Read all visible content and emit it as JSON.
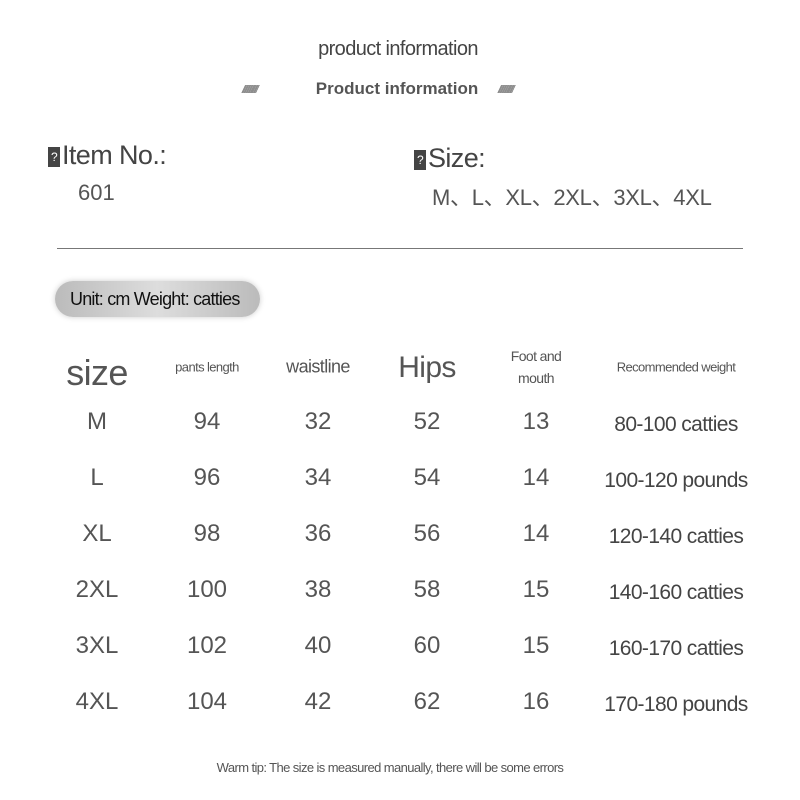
{
  "header": {
    "title": "product information",
    "subtitle": "Product information",
    "hatch": "//////////////"
  },
  "item": {
    "icon": "?",
    "label": "Item No.:",
    "value": "601"
  },
  "size": {
    "icon": "?",
    "label": "Size:",
    "value": "M、L、XL、2XL、3XL、4XL"
  },
  "unit_badge": "Unit: cm Weight: catties",
  "table": {
    "headers": [
      "size",
      "pants length",
      "waistline",
      "Hips",
      "Foot and mouth",
      "Recommended weight"
    ],
    "rows": [
      [
        "M",
        "94",
        "32",
        "52",
        "13",
        "80-100 catties"
      ],
      [
        "L",
        "96",
        "34",
        "54",
        "14",
        "100-120 pounds"
      ],
      [
        "XL",
        "98",
        "36",
        "56",
        "14",
        "120-140 catties"
      ],
      [
        "2XL",
        "100",
        "38",
        "58",
        "15",
        "140-160 catties"
      ],
      [
        "3XL",
        "102",
        "40",
        "60",
        "15",
        "160-170 catties"
      ],
      [
        "4XL",
        "104",
        "42",
        "62",
        "16",
        "170-180 pounds"
      ]
    ]
  },
  "tip": "Warm tip: The size is measured manually, there will be some errors"
}
